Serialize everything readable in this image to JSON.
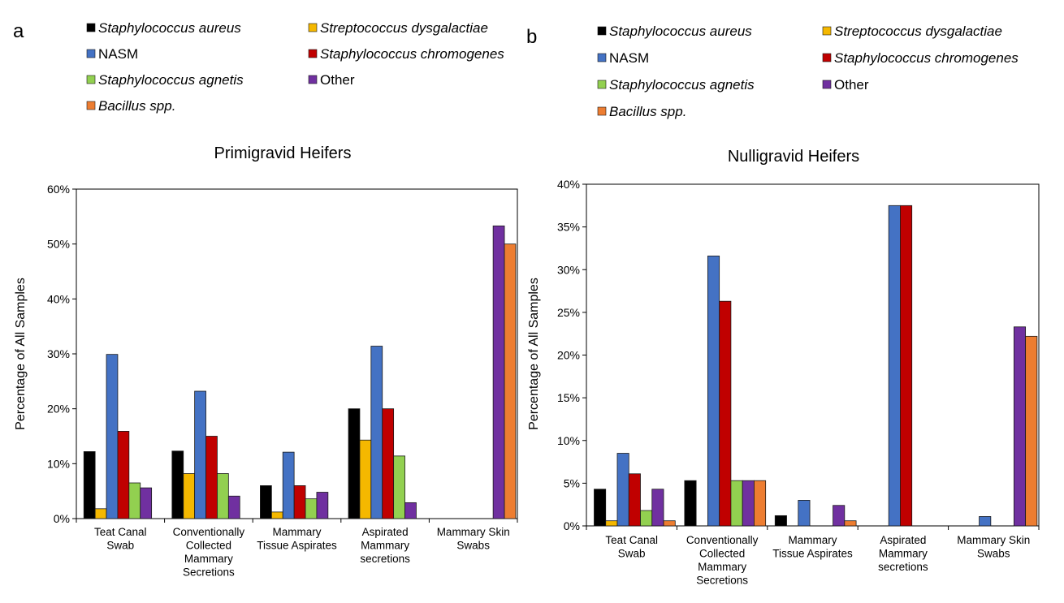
{
  "colors": {
    "series": [
      "#000000",
      "#f5b800",
      "#4472c4",
      "#c00000",
      "#92d050",
      "#7030a0",
      "#ed7d31"
    ],
    "bar_stroke": "#1a1a1a",
    "axis": "#000000"
  },
  "series": [
    {
      "name": "Staphylococcus aureus",
      "italic": true
    },
    {
      "name": "Streptococcus dysgalactiae",
      "italic": true
    },
    {
      "name": "NASM",
      "italic": false
    },
    {
      "name": "Staphylococcus chromogenes",
      "italic": true
    },
    {
      "name": "Staphylococcus agnetis",
      "italic": true
    },
    {
      "name": "Other",
      "italic": false
    },
    {
      "name": "Bacillus spp.",
      "italic": true
    }
  ],
  "chart_data": [
    {
      "type": "bar",
      "panel": "a",
      "title": "Primigravid Heifers",
      "xlabel": "",
      "ylabel": "Percentage of All Samples",
      "ylim": [
        0,
        60
      ],
      "yticks": [
        0,
        10,
        20,
        30,
        40,
        50,
        60
      ],
      "ytick_labels": [
        "0%",
        "10%",
        "20%",
        "30%",
        "40%",
        "50%",
        "60%"
      ],
      "categories": [
        [
          "Teat Canal",
          "Swab"
        ],
        [
          "Conventionally",
          "Collected",
          "Mammary",
          "Secretions"
        ],
        [
          "Mammary",
          "Tissue Aspirates"
        ],
        [
          "Aspirated",
          "Mammary",
          "secretions"
        ],
        [
          "Mammary Skin",
          "Swabs"
        ]
      ],
      "series_values": [
        [
          12.2,
          1.8,
          29.9,
          15.9,
          6.5,
          5.6,
          0
        ],
        [
          12.3,
          8.2,
          23.2,
          15.0,
          8.2,
          4.1,
          0
        ],
        [
          6.0,
          1.2,
          12.1,
          6.0,
          3.6,
          4.8,
          0
        ],
        [
          20.0,
          14.3,
          31.4,
          20.0,
          11.4,
          2.9,
          0
        ],
        [
          0,
          0,
          0,
          0,
          0,
          53.3,
          50.0
        ]
      ]
    },
    {
      "type": "bar",
      "panel": "b",
      "title": "Nulligravid Heifers",
      "xlabel": "",
      "ylabel": "Percentage of All Samples",
      "ylim": [
        0,
        40
      ],
      "yticks": [
        0,
        5,
        10,
        15,
        20,
        25,
        30,
        35,
        40
      ],
      "ytick_labels": [
        "0%",
        "5%",
        "10%",
        "15%",
        "20%",
        "25%",
        "30%",
        "35%",
        "40%"
      ],
      "categories": [
        [
          "Teat Canal",
          "Swab"
        ],
        [
          "Conventionally",
          "Collected",
          "Mammary",
          "Secretions"
        ],
        [
          "Mammary",
          "Tissue Aspirates"
        ],
        [
          "Aspirated",
          "Mammary",
          "secretions"
        ],
        [
          "Mammary Skin",
          "Swabs"
        ]
      ],
      "series_values": [
        [
          4.3,
          0.6,
          8.5,
          6.1,
          1.8,
          4.3,
          0.6
        ],
        [
          5.3,
          0,
          31.6,
          26.3,
          5.3,
          5.3,
          5.3
        ],
        [
          1.2,
          0,
          3.0,
          0,
          0,
          2.4,
          0.6
        ],
        [
          0,
          0,
          37.5,
          37.5,
          0,
          0,
          0
        ],
        [
          0,
          0,
          1.1,
          0,
          0,
          23.3,
          22.2
        ]
      ]
    }
  ]
}
